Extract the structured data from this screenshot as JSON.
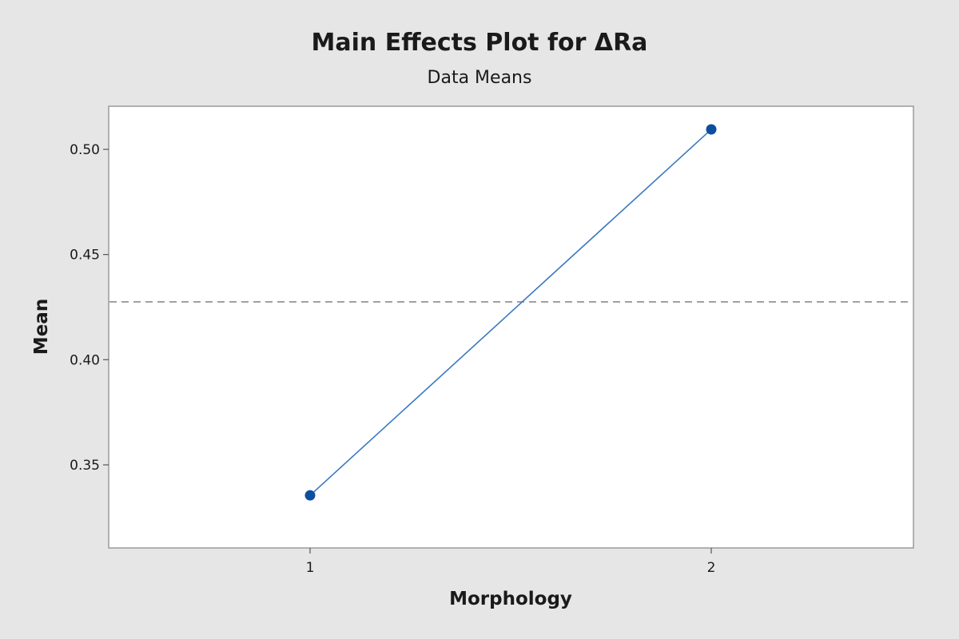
{
  "chart_data": {
    "type": "line",
    "title": "Main Effects Plot for ΔRa",
    "subtitle": "Data Means",
    "xlabel": "Morphology",
    "ylabel": "Mean",
    "categories": [
      "1",
      "2"
    ],
    "series": [
      {
        "values": [
          0.3355,
          0.5095
        ]
      }
    ],
    "reference_line": {
      "value": 0.4275,
      "style": "dashed"
    },
    "yticks": [
      "0.35",
      "0.40",
      "0.45",
      "0.50"
    ],
    "ylim": [
      0.3105,
      0.5205
    ],
    "grid": false,
    "colors": {
      "series": "#3a78c0",
      "marker": "#0c4f9e",
      "reference": "#8c8c8c",
      "background": "#e6e6e6",
      "plot_area": "#ffffff"
    }
  }
}
